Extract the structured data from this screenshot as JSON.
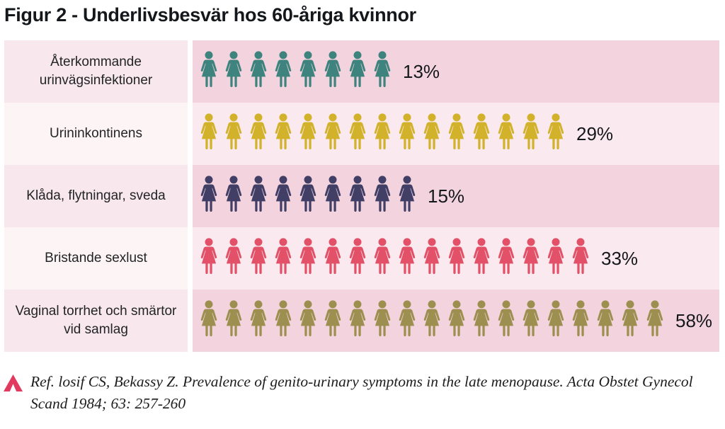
{
  "title": "Figur 2 - Underlivsbesvär hos 60-åriga kvinnor",
  "chart_data": {
    "type": "pictogram-bar",
    "title": "Figur 2 - Underlivsbesvär hos 60-åriga kvinnor",
    "unit": "%",
    "icon": "woman-figure",
    "categories": [
      "Återkommande urinvägsinfektioner",
      "Urininkontinens",
      "Klåda, flytningar, sveda",
      "Bristande sexlust",
      "Vaginal torrhet och smärtor vid samlag"
    ],
    "values": [
      13,
      29,
      15,
      33,
      58
    ],
    "rows": [
      {
        "label": "Återkommande urinvägsinfektioner",
        "value": 13,
        "value_label": "13%",
        "icon_count": 8,
        "color": "#3e837d"
      },
      {
        "label": "Urininkontinens",
        "value": 29,
        "value_label": "29%",
        "icon_count": 15,
        "color": "#d2b22b"
      },
      {
        "label": "Klåda, flytningar, sveda",
        "value": 15,
        "value_label": "15%",
        "icon_count": 9,
        "color": "#423f67"
      },
      {
        "label": "Bristande sexlust",
        "value": 33,
        "value_label": "33%",
        "icon_count": 16,
        "color": "#e25168"
      },
      {
        "label": "Vaginal torrhet och smärtor vid samlag",
        "value": 58,
        "value_label": "58%",
        "icon_count": 19,
        "color": "#9c8f4f"
      }
    ]
  },
  "colors": {
    "label_bg_odd": "#f8e8ed",
    "label_bg_even": "#fdf4f6",
    "icons_bg_odd": "#f3d4de",
    "icons_bg_even": "#fae9ef",
    "accent_caret": "#e23a5e",
    "text": "#15181b"
  },
  "footer": {
    "reference": "Ref. losif CS, Bekassy Z. Prevalence of genito-urinary symptoms in the late menopause. Acta Obstet Gynecol Scand 1984; 63: 257-260"
  }
}
